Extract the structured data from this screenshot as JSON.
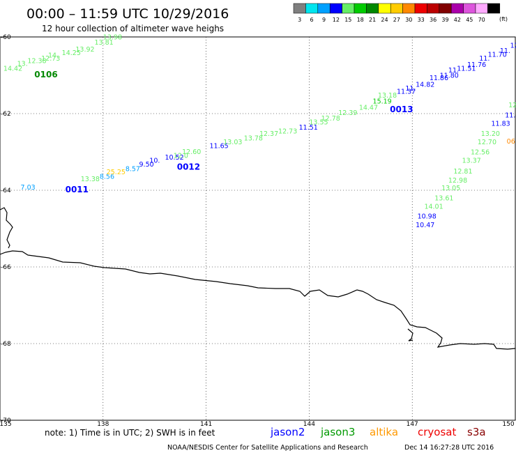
{
  "header": {
    "title": "00:00 – 11:59 UTC 10/29/2016",
    "subtitle": "12 hour collection of altimeter wave heighs"
  },
  "legend": {
    "unit": "(ft)",
    "bins": [
      {
        "label": "3",
        "color": "#7f7f7f"
      },
      {
        "label": "6",
        "color": "#00e5ee"
      },
      {
        "label": "9",
        "color": "#00a0ff"
      },
      {
        "label": "12",
        "color": "#0000ff"
      },
      {
        "label": "15",
        "color": "#66ee66"
      },
      {
        "label": "18",
        "color": "#00cc00"
      },
      {
        "label": "21",
        "color": "#008800"
      },
      {
        "label": "24",
        "color": "#ffff00"
      },
      {
        "label": "27",
        "color": "#ffcc00"
      },
      {
        "label": "30",
        "color": "#ff8800"
      },
      {
        "label": "33",
        "color": "#ee0000"
      },
      {
        "label": "36",
        "color": "#bb0000"
      },
      {
        "label": "39",
        "color": "#800000"
      },
      {
        "label": "42",
        "color": "#aa00aa"
      },
      {
        "label": "45",
        "color": "#dd55dd"
      },
      {
        "label": "70",
        "color": "#ffaaff"
      },
      {
        "label": "",
        "color": "#000000"
      }
    ]
  },
  "axes": {
    "lat_ticks": [
      "-60",
      "-62",
      "-64",
      "-66",
      "-68",
      "-70"
    ],
    "lon_ticks": [
      "135",
      "138",
      "141",
      "144",
      "147",
      "150"
    ],
    "lat_range": [
      -70,
      -60
    ],
    "lon_range": [
      135,
      150
    ]
  },
  "observations": [
    {
      "text": "14.42",
      "color": "#66ee66",
      "lon": 135.1,
      "lat": -60.88
    },
    {
      "text": "13.",
      "color": "#66ee66",
      "lon": 135.5,
      "lat": -60.75
    },
    {
      "text": "12.38",
      "color": "#66ee66",
      "lon": 135.8,
      "lat": -60.68
    },
    {
      "text": "12.73",
      "color": "#66ee66",
      "lon": 136.2,
      "lat": -60.62
    },
    {
      "text": "14.",
      "color": "#66ee66",
      "lon": 136.4,
      "lat": -60.54
    },
    {
      "text": "14.25",
      "color": "#66ee66",
      "lon": 136.8,
      "lat": -60.47
    },
    {
      "text": "13.92",
      "color": "#66ee66",
      "lon": 137.2,
      "lat": -60.38
    },
    {
      "text": "13.81",
      "color": "#66ee66",
      "lon": 137.75,
      "lat": -60.2
    },
    {
      "text": "13.98",
      "color": "#66ee66",
      "lon": 138.0,
      "lat": -60.06
    },
    {
      "text": "7.03",
      "color": "#00a0ff",
      "lon": 135.6,
      "lat": -63.98
    },
    {
      "text": "13.38",
      "color": "#66ee66",
      "lon": 137.35,
      "lat": -63.76
    },
    {
      "text": "8.56",
      "color": "#00a0ff",
      "lon": 137.9,
      "lat": -63.7
    },
    {
      "text": "25.25",
      "color": "#ffcc00",
      "lon": 138.1,
      "lat": -63.58
    },
    {
      "text": "8.57",
      "color": "#00a0ff",
      "lon": 138.65,
      "lat": -63.5
    },
    {
      "text": "9.50",
      "color": "#0000ff",
      "lon": 139.05,
      "lat": -63.38
    },
    {
      "text": "10.",
      "color": "#0000ff",
      "lon": 139.35,
      "lat": -63.28
    },
    {
      "text": "10.52",
      "color": "#0000ff",
      "lon": 139.8,
      "lat": -63.2
    },
    {
      "text": "12.0",
      "color": "#66ee66",
      "lon": 140.05,
      "lat": -63.15
    },
    {
      "text": "12.60",
      "color": "#66ee66",
      "lon": 140.3,
      "lat": -63.05
    },
    {
      "text": "11.65",
      "color": "#0000ff",
      "lon": 141.1,
      "lat": -62.9
    },
    {
      "text": "13.03",
      "color": "#66ee66",
      "lon": 141.5,
      "lat": -62.8
    },
    {
      "text": "13.78",
      "color": "#66ee66",
      "lon": 142.1,
      "lat": -62.7
    },
    {
      "text": "12.37",
      "color": "#66ee66",
      "lon": 142.55,
      "lat": -62.58
    },
    {
      "text": "12.73",
      "color": "#66ee66",
      "lon": 143.1,
      "lat": -62.52
    },
    {
      "text": "11.51",
      "color": "#0000ff",
      "lon": 143.7,
      "lat": -62.42
    },
    {
      "text": "13.55",
      "color": "#66ee66",
      "lon": 144.0,
      "lat": -62.28
    },
    {
      "text": "12.78",
      "color": "#66ee66",
      "lon": 144.35,
      "lat": -62.18
    },
    {
      "text": "12.39",
      "color": "#66ee66",
      "lon": 144.85,
      "lat": -62.04
    },
    {
      "text": "14.47",
      "color": "#66ee66",
      "lon": 145.45,
      "lat": -61.9
    },
    {
      "text": "15.19",
      "color": "#00cc00",
      "lon": 145.85,
      "lat": -61.74
    },
    {
      "text": "13.18",
      "color": "#66ee66",
      "lon": 146.0,
      "lat": -61.58
    },
    {
      "text": "11.37",
      "color": "#0000ff",
      "lon": 146.55,
      "lat": -61.48
    },
    {
      "text": "11.",
      "color": "#0000ff",
      "lon": 146.8,
      "lat": -61.4
    },
    {
      "text": "14.82",
      "color": "#0000ff",
      "lon": 147.1,
      "lat": -61.3
    },
    {
      "text": "11.86",
      "color": "#0000ff",
      "lon": 147.5,
      "lat": -61.13
    },
    {
      "text": "11.80",
      "color": "#0000ff",
      "lon": 147.8,
      "lat": -61.06
    },
    {
      "text": "11.",
      "color": "#0000ff",
      "lon": 148.05,
      "lat": -60.93
    },
    {
      "text": "11.51",
      "color": "#0000ff",
      "lon": 148.3,
      "lat": -60.88
    },
    {
      "text": "11.76",
      "color": "#0000ff",
      "lon": 148.6,
      "lat": -60.78
    },
    {
      "text": "11.",
      "color": "#0000ff",
      "lon": 148.95,
      "lat": -60.62
    },
    {
      "text": "11.70",
      "color": "#0000ff",
      "lon": 149.2,
      "lat": -60.52
    },
    {
      "text": "11.",
      "color": "#0000ff",
      "lon": 149.55,
      "lat": -60.42
    },
    {
      "text": "12",
      "color": "#0000ff",
      "lon": 149.85,
      "lat": -60.28
    },
    {
      "text": "12.",
      "color": "#66ee66",
      "lon": 149.8,
      "lat": -61.84
    },
    {
      "text": "11.46",
      "color": "#0000ff",
      "lon": 149.7,
      "lat": -62.1
    },
    {
      "text": "11.83",
      "color": "#0000ff",
      "lon": 149.3,
      "lat": -62.32
    },
    {
      "text": "13.20",
      "color": "#66ee66",
      "lon": 149.0,
      "lat": -62.58
    },
    {
      "text": "12.70",
      "color": "#66ee66",
      "lon": 148.9,
      "lat": -62.8
    },
    {
      "text": "12.56",
      "color": "#66ee66",
      "lon": 148.7,
      "lat": -63.06
    },
    {
      "text": "13.37",
      "color": "#66ee66",
      "lon": 148.45,
      "lat": -63.28
    },
    {
      "text": "12.81",
      "color": "#66ee66",
      "lon": 148.2,
      "lat": -63.56
    },
    {
      "text": "12.98",
      "color": "#66ee66",
      "lon": 148.05,
      "lat": -63.8
    },
    {
      "text": "13.05",
      "color": "#66ee66",
      "lon": 147.85,
      "lat": -64.0
    },
    {
      "text": "13.61",
      "color": "#66ee66",
      "lon": 147.65,
      "lat": -64.26
    },
    {
      "text": "14.01",
      "color": "#66ee66",
      "lon": 147.35,
      "lat": -64.48
    },
    {
      "text": "10.98",
      "color": "#0000ff",
      "lon": 147.15,
      "lat": -64.74
    },
    {
      "text": "10.47",
      "color": "#0000ff",
      "lon": 147.1,
      "lat": -64.96
    },
    {
      "text": "06",
      "color": "#ff8800",
      "lon": 149.75,
      "lat": -62.78
    }
  ],
  "passes": [
    {
      "text": "0106",
      "color": "#008800",
      "lon": 136.0,
      "lat": -61.05
    },
    {
      "text": "0011",
      "color": "#0000ff",
      "lon": 136.9,
      "lat": -64.05
    },
    {
      "text": "0012",
      "color": "#0000ff",
      "lon": 140.15,
      "lat": -63.46
    },
    {
      "text": "0013",
      "color": "#0000ff",
      "lon": 146.35,
      "lat": -61.96
    }
  ],
  "footer": {
    "note": "note:  1) Time is in UTC;  2) SWH is in feet",
    "sat_jason2": "jason2",
    "sat_jason3": "jason3",
    "sat_altika": "altika",
    "sat_cryosat": "cryosat",
    "sat_s3a": "s3a",
    "credit": "NOAA/NESDIS Center for Satellite Applications and Research",
    "timestamp": "Dec 14 16:27:28 UTC 2016"
  },
  "colors": {
    "jason2": "#0000ff",
    "jason3": "#009900",
    "altika": "#ff9900",
    "cryosat": "#ee0000",
    "s3a": "#880000"
  }
}
